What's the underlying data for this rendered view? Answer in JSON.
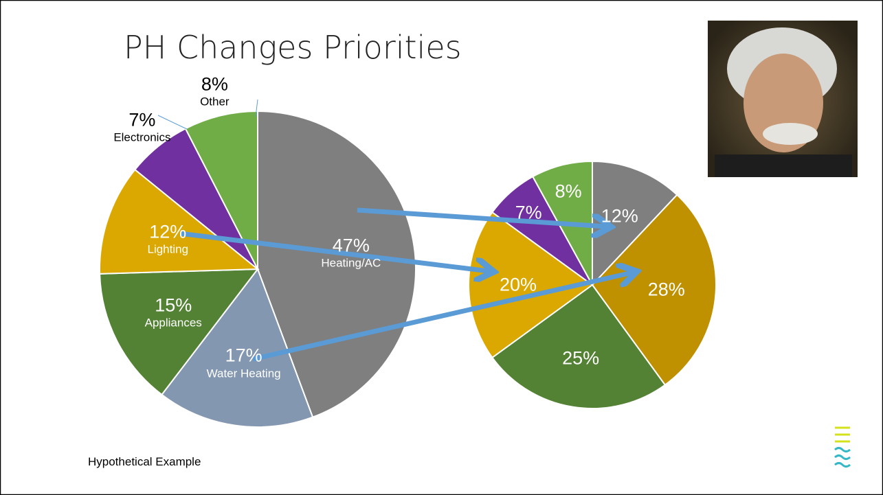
{
  "title": "PH Changes Priorities",
  "footnote": "Hypothetical Example",
  "chart_data": [
    {
      "type": "pie",
      "categories": [
        "Heating/AC",
        "Water Heating",
        "Appliances",
        "Lighting",
        "Electronics",
        "Other"
      ],
      "values": [
        47,
        17,
        15,
        12,
        7,
        8
      ],
      "value_labels": [
        "47%",
        "17%",
        "15%",
        "12%",
        "7%",
        "8%"
      ],
      "colors": [
        "#7f7f7f",
        "#8497b0",
        "#548235",
        "#dba802",
        "#7030a0",
        "#70ad47"
      ]
    },
    {
      "type": "pie",
      "values": [
        12,
        28,
        25,
        20,
        7,
        8
      ],
      "value_labels": [
        "12%",
        "28%",
        "25%",
        "20%",
        "7%",
        "8%"
      ],
      "colors": [
        "#7f7f7f",
        "#bf9000",
        "#548235",
        "#dba802",
        "#7030a0",
        "#70ad47"
      ]
    }
  ]
}
